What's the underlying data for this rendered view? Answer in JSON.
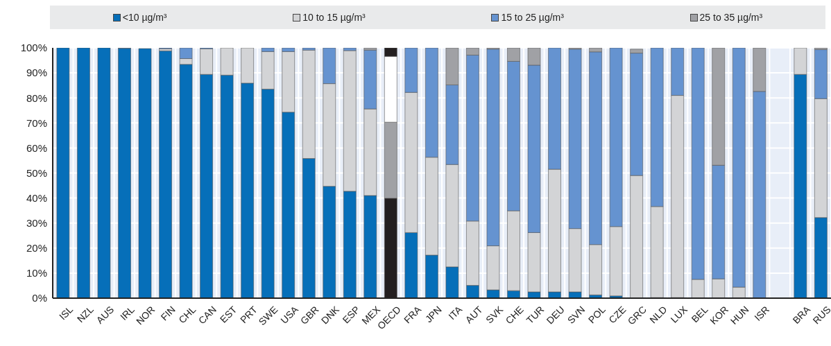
{
  "chart_data": {
    "type": "bar",
    "stacked": true,
    "categories": [
      "ISL",
      "NZL",
      "AUS",
      "IRL",
      "NOR",
      "FIN",
      "CHL",
      "CAN",
      "EST",
      "PRT",
      "SWE",
      "USA",
      "GBR",
      "DNK",
      "ESP",
      "MEX",
      "OECD",
      "FRA",
      "JPN",
      "ITA",
      "AUT",
      "SVK",
      "CHE",
      "TUR",
      "DEU",
      "SVN",
      "POL",
      "CZE",
      "GRC",
      "NLD",
      "LUX",
      "BEL",
      "KOR",
      "HUN",
      "ISR",
      null,
      "BRA",
      "RUS"
    ],
    "series": [
      {
        "name": "<10 µg/m³",
        "color": "#066fb9",
        "colors": [
          "#066fb9",
          "#066fb9",
          "#066fb9",
          "#066fb9",
          "#066fb9",
          "#066fb9",
          "#066fb9",
          "#066fb9",
          "#066fb9",
          "#066fb9",
          "#066fb9",
          "#066fb9",
          "#066fb9",
          "#066fb9",
          "#066fb9",
          "#066fb9",
          "#231f20",
          "#066fb9",
          "#066fb9",
          "#066fb9",
          "#066fb9",
          "#066fb9",
          "#066fb9",
          "#066fb9",
          "#066fb9",
          "#066fb9",
          "#066fb9",
          "#066fb9",
          "#066fb9",
          "#066fb9",
          "#066fb9",
          "#066fb9",
          "#066fb9",
          "#066fb9",
          "#066fb9",
          "#066fb9",
          "#066fb9",
          "#066fb9"
        ],
        "values": [
          100,
          100,
          100,
          99.8,
          99.7,
          98.8,
          93.4,
          89.4,
          89.1,
          85.9,
          83.5,
          74.3,
          55.8,
          44.7,
          42.7,
          41.0,
          39.9,
          26.2,
          17.2,
          12.5,
          5.1,
          3.3,
          3.0,
          2.5,
          2.5,
          2.5,
          1.3,
          0.9,
          null,
          0.2,
          0.2,
          0,
          0,
          0,
          0,
          null,
          89.4,
          32.2
        ]
      },
      {
        "name": "10 to 15 µg/m³",
        "color": "#d3d4d6",
        "colors": [
          "#d3d4d6",
          "#d3d4d6",
          "#d3d4d6",
          "#d3d4d6",
          "#d3d4d6",
          "#d3d4d6",
          "#d3d4d6",
          "#d3d4d6",
          "#d3d4d6",
          "#d3d4d6",
          "#d3d4d6",
          "#d3d4d6",
          "#d3d4d6",
          "#d3d4d6",
          "#d3d4d6",
          "#d3d4d6",
          "#a0a1a5",
          "#d3d4d6",
          "#d3d4d6",
          "#d3d4d6",
          "#d3d4d6",
          "#d3d4d6",
          "#d3d4d6",
          "#d3d4d6",
          "#d3d4d6",
          "#d3d4d6",
          "#d3d4d6",
          "#d3d4d6",
          "#d3d4d6",
          "#d3d4d6",
          "#d3d4d6",
          "#d3d4d6",
          "#d3d4d6",
          "#d3d4d6",
          "#d3d4d6",
          "#d3d4d6",
          "#d3d4d6",
          "#d3d4d6"
        ],
        "values": [
          0,
          0,
          0,
          0,
          null,
          0.8,
          2.3,
          10.2,
          10.9,
          14.1,
          15.0,
          24.2,
          43.3,
          41.0,
          56.2,
          34.6,
          30.4,
          56.0,
          39.1,
          40.9,
          25.7,
          17.6,
          31.9,
          23.7,
          49.0,
          25.3,
          20.1,
          27.7,
          49.0,
          36.4,
          80.8,
          7.5,
          7.7,
          4.4,
          0,
          null,
          10.6,
          47.5
        ]
      },
      {
        "name": "15 to 25 µg/m³",
        "color": "#6593d0",
        "colors": [
          "#6593d0",
          "#6593d0",
          "#6593d0",
          "#6593d0",
          "#6593d0",
          "#6593d0",
          "#6593d0",
          "#6593d0",
          "#6593d0",
          "#6593d0",
          "#6593d0",
          "#6593d0",
          "#6593d0",
          "#6593d0",
          "#6593d0",
          "#6593d0",
          "#ffffff",
          "#6593d0",
          "#6593d0",
          "#6593d0",
          "#6593d0",
          "#6593d0",
          "#6593d0",
          "#6593d0",
          "#6593d0",
          "#6593d0",
          "#6593d0",
          "#6593d0",
          "#6593d0",
          "#6593d0",
          "#6593d0",
          "#6593d0",
          "#6593d0",
          "#6593d0",
          "#6593d0",
          "#6593d0",
          "#6593d0",
          "#6593d0"
        ],
        "values": [
          0,
          0,
          0,
          0.2,
          0,
          0.4,
          4.3,
          0.4,
          0,
          0,
          1.5,
          1.5,
          0.9,
          14.3,
          1.1,
          23.5,
          26.3,
          17.8,
          43.7,
          31.8,
          66.3,
          78.6,
          59.7,
          66.9,
          48.5,
          71.7,
          77.0,
          71.4,
          48.9,
          63.4,
          19.0,
          92.5,
          45.4,
          95.6,
          82.6,
          null,
          0,
          19.6
        ]
      },
      {
        "name": "25 to 35 µg/m³",
        "color": "#a0a1a5",
        "colors": [
          "#a0a1a5",
          "#a0a1a5",
          "#a0a1a5",
          "#a0a1a5",
          "#a0a1a5",
          "#a0a1a5",
          "#a0a1a5",
          "#a0a1a5",
          "#a0a1a5",
          "#a0a1a5",
          "#a0a1a5",
          "#a0a1a5",
          "#a0a1a5",
          "#a0a1a5",
          "#a0a1a5",
          "#a0a1a5",
          "#231f20",
          "#a0a1a5",
          "#a0a1a5",
          "#a0a1a5",
          "#a0a1a5",
          "#a0a1a5",
          "#a0a1a5",
          "#a0a1a5",
          "#a0a1a5",
          "#a0a1a5",
          "#a0a1a5",
          "#a0a1a5",
          "#a0a1a5",
          "#a0a1a5",
          "#a0a1a5",
          "#a0a1a5",
          "#a0a1a5",
          "#a0a1a5",
          "#a0a1a5",
          "#a0a1a5",
          "#a0a1a5",
          "#a0a1a5"
        ],
        "values": [
          0,
          0,
          0,
          0,
          0,
          0,
          0,
          0,
          0,
          0,
          0,
          0,
          0,
          0,
          0,
          0.9,
          3.4,
          0,
          0,
          14.8,
          2.9,
          0.5,
          5.4,
          6.9,
          0,
          0.5,
          1.6,
          0,
          1.6,
          0,
          0,
          0,
          46.9,
          0,
          17.4,
          null,
          0,
          0.7
        ]
      }
    ],
    "ylim": [
      0,
      100
    ],
    "yticks": [
      {
        "value": 0,
        "label": "0%"
      },
      {
        "value": 10,
        "label": "10%"
      },
      {
        "value": 20,
        "label": "20%"
      },
      {
        "value": 30,
        "label": "30%"
      },
      {
        "value": 40,
        "label": "40%"
      },
      {
        "value": 50,
        "label": "50%"
      },
      {
        "value": 60,
        "label": "60%"
      },
      {
        "value": 70,
        "label": "70%"
      },
      {
        "value": 80,
        "label": "80%"
      },
      {
        "value": 90,
        "label": "90%"
      },
      {
        "value": 100,
        "label": "100%"
      }
    ],
    "grid": true,
    "legend": "top"
  }
}
